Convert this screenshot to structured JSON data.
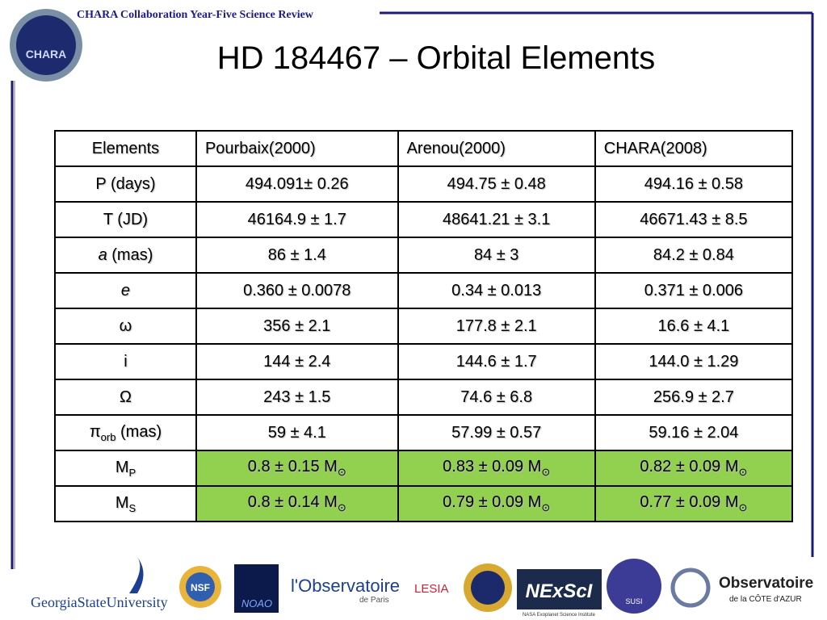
{
  "header": {
    "conference": "CHARA Collaboration Year-Five Science Review",
    "logo_text": "CHARA"
  },
  "title": "HD 184467 – Orbital Elements",
  "table": {
    "columns": [
      "Elements",
      "Pourbaix(2000)",
      "Arenou(2000)",
      "CHARA(2008)"
    ],
    "rows": [
      {
        "cells": [
          "P (days)",
          "494.091± 0.26",
          "494.75 ± 0.48",
          "494.16 ± 0.58"
        ]
      },
      {
        "cells": [
          "T (JD)",
          "46164.9 ± 1.7",
          "48641.21 ± 3.1",
          "46671.43 ± 8.5"
        ]
      },
      {
        "cells": [
          [
            {
              "t": "a",
              "style": "italic"
            },
            {
              "t": " (mas)"
            }
          ],
          "86 ± 1.4",
          "84 ± 3",
          "84.2 ± 0.84"
        ]
      },
      {
        "cells": [
          [
            {
              "t": "e",
              "style": "italic"
            }
          ],
          "0.360 ± 0.0078",
          "0.34 ± 0.013",
          "0.371 ± 0.006"
        ]
      },
      {
        "cells": [
          "ω",
          "356 ± 2.1",
          "177.8 ± 2.1",
          "16.6 ± 4.1"
        ]
      },
      {
        "cells": [
          "i",
          "144 ± 2.4",
          "144.6 ± 1.7",
          "144.0 ± 1.29"
        ]
      },
      {
        "cells": [
          "Ω",
          "243 ± 1.5",
          "74.6 ± 6.8",
          "256.9 ± 2.7"
        ]
      },
      {
        "cells": [
          [
            {
              "t": "π"
            },
            {
              "t": "orb",
              "style": "sub"
            },
            {
              "t": " (mas)"
            }
          ],
          "59 ± 4.1",
          "57.99 ± 0.57",
          "59.16 ± 2.04"
        ]
      },
      {
        "cells": [
          [
            {
              "t": "M"
            },
            {
              "t": "P",
              "style": "sub"
            }
          ],
          [
            {
              "t": "0.8 ± 0.15 M"
            },
            {
              "t": "⊙",
              "style": "sub"
            }
          ],
          [
            {
              "t": "0.83 ± 0.09 M"
            },
            {
              "t": "⊙",
              "style": "sub"
            }
          ],
          [
            {
              "t": "0.82 ± 0.09 M"
            },
            {
              "t": "⊙",
              "style": "sub"
            }
          ]
        ],
        "highlight": "#92d050"
      },
      {
        "cells": [
          [
            {
              "t": "M"
            },
            {
              "t": "S",
              "style": "sub"
            }
          ],
          [
            {
              "t": "0.8 ± 0.14 M"
            },
            {
              "t": "⊙",
              "style": "sub"
            }
          ],
          [
            {
              "t": "0.79 ± 0.09 M"
            },
            {
              "t": "⊙",
              "style": "sub"
            }
          ],
          [
            {
              "t": "0.77 ± 0.09 M"
            },
            {
              "t": "⊙",
              "style": "sub"
            }
          ]
        ],
        "highlight": "#92d050"
      }
    ]
  },
  "footer_logos": {
    "gsu": "GeorgiaStateUniversity",
    "nsf": "NSF",
    "noao": "NOAO",
    "obs_paris": "l'Observatoire",
    "obs_paris_sub": "de Paris",
    "lesia": "LESIA",
    "nexsci": "NExScI",
    "nexsci_sub": "NASA Exoplanet Science Institute",
    "susi": "SUSI",
    "oca": "Observatoire",
    "oca_sub": "de la CÔTE d'AZUR"
  }
}
